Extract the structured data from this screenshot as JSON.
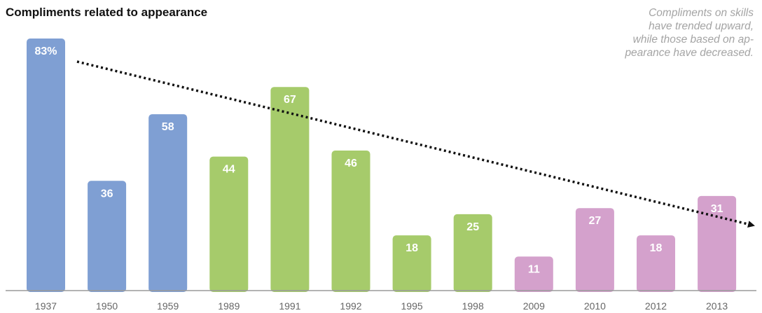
{
  "chart_data": {
    "type": "bar",
    "title": "Compliments related to appearance",
    "annotation": [
      "Compliments on skills",
      "have trended upward,",
      "while those based on ap-",
      "pearance have decreased."
    ],
    "categories": [
      "1937",
      "1950",
      "1959",
      "1989",
      "1991",
      "1992",
      "1995",
      "1998",
      "2009",
      "2010",
      "2012",
      "2013"
    ],
    "values": [
      83,
      36,
      58,
      44,
      67,
      46,
      18,
      25,
      11,
      27,
      18,
      31
    ],
    "data_labels": [
      "83%",
      "36",
      "58",
      "44",
      "67",
      "46",
      "18",
      "25",
      "11",
      "27",
      "18",
      "31"
    ],
    "bar_colors": [
      "#7f9fd3",
      "#7f9fd3",
      "#7f9fd3",
      "#a6cb6b",
      "#a6cb6b",
      "#a6cb6b",
      "#a6cb6b",
      "#a6cb6b",
      "#d4a1cc",
      "#d4a1cc",
      "#d4a1cc",
      "#d4a1cc"
    ],
    "ylim": [
      0,
      83
    ],
    "trend_line": {
      "style": "dotted",
      "color": "#111111",
      "arrow": true,
      "direction": "decreasing"
    },
    "grid": false
  }
}
